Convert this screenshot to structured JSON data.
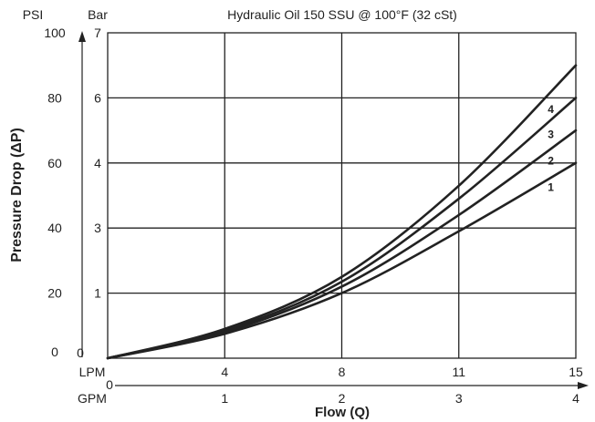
{
  "chart_data": {
    "type": "line",
    "title": "Hydraulic Oil 150 SSU @ 100°F (32 cSt)",
    "ylabel": "Pressure Drop (ΔP)",
    "xlabel": "Flow (Q)",
    "psi_header": "PSI",
    "bar_header": "Bar",
    "lpm_label": "LPM",
    "gpm_label": "GPM",
    "psi_ticks": [
      "0",
      "20",
      "40",
      "60",
      "80",
      "100"
    ],
    "bar_ticks": [
      "1",
      "3",
      "4",
      "6",
      "7"
    ],
    "bar_zero": "0",
    "lpm_ticks": [
      "4",
      "8",
      "11",
      "15"
    ],
    "gpm_ticks": [
      "1",
      "2",
      "3",
      "4"
    ],
    "x_zero": "0",
    "xlim": [
      0,
      4
    ],
    "ylim": [
      0,
      100
    ],
    "grid": true,
    "series": [
      {
        "name": "1",
        "x": [
          0,
          1,
          2,
          3,
          4
        ],
        "y": [
          0,
          7.5,
          20,
          39,
          60
        ]
      },
      {
        "name": "2",
        "x": [
          0,
          1,
          2,
          3,
          4
        ],
        "y": [
          0,
          8,
          22,
          44,
          70
        ]
      },
      {
        "name": "3",
        "x": [
          0,
          1,
          2,
          3,
          4
        ],
        "y": [
          0,
          8.5,
          23.5,
          49,
          80
        ]
      },
      {
        "name": "4",
        "x": [
          0,
          1,
          2,
          3,
          4
        ],
        "y": [
          0,
          9,
          25,
          53,
          90
        ]
      }
    ]
  }
}
